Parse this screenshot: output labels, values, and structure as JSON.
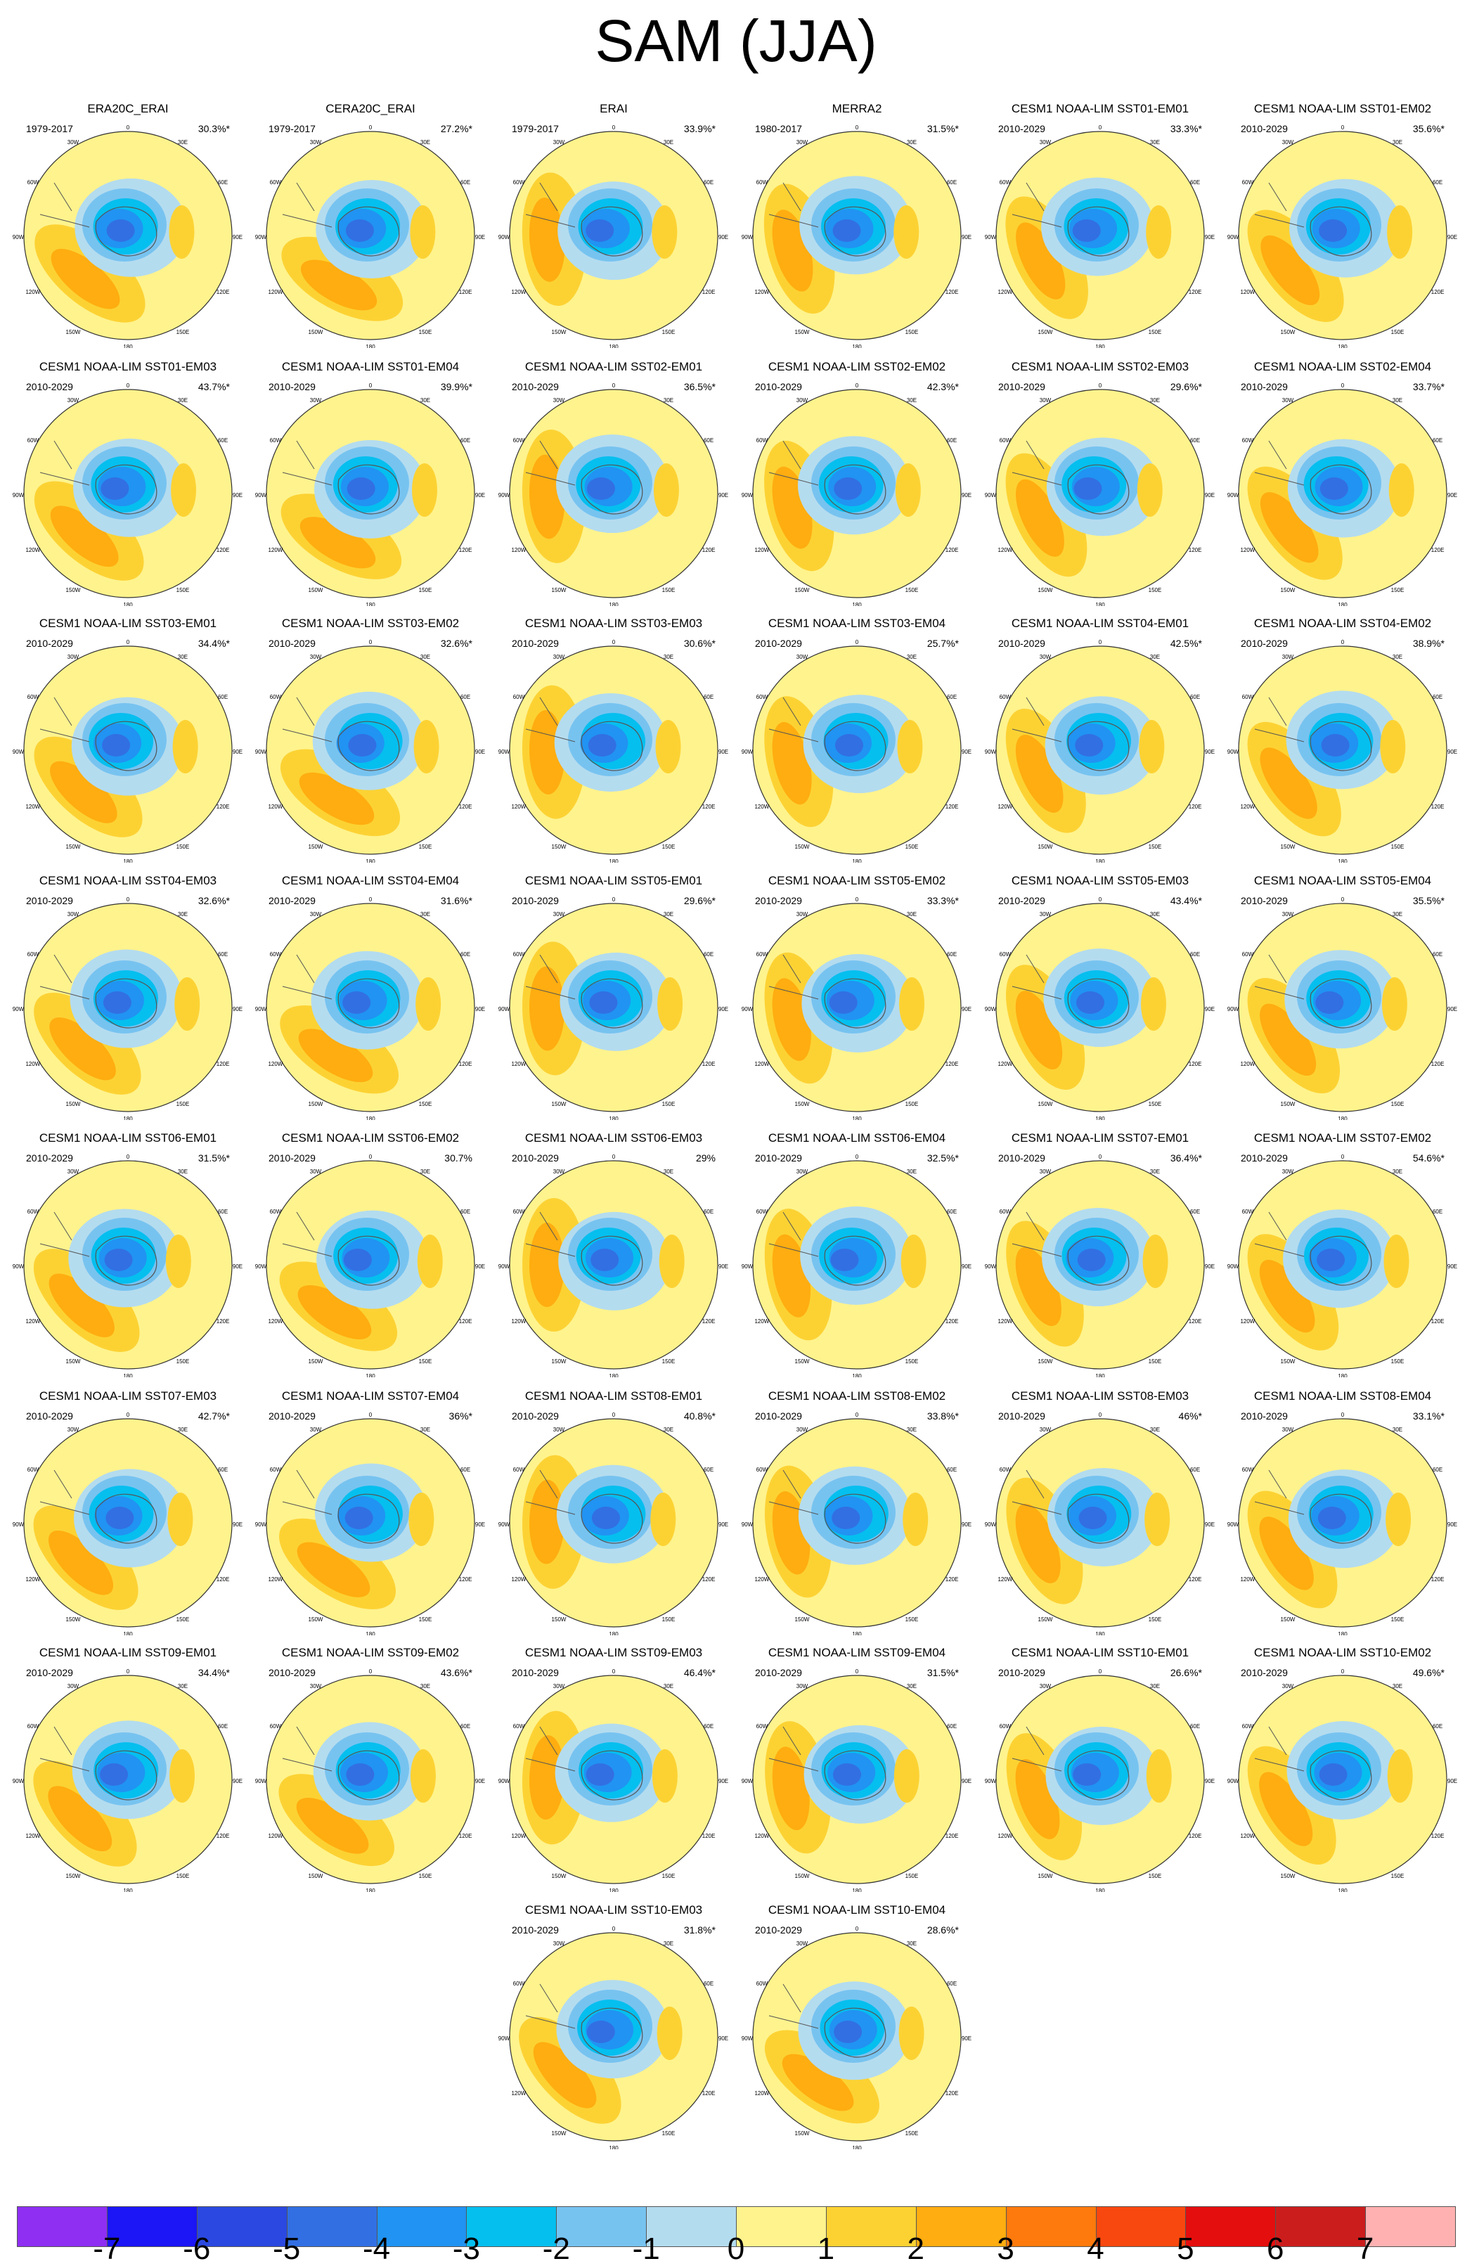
{
  "title": "SAM (JJA)",
  "lon_labels": [
    "0",
    "30E",
    "60E",
    "90E",
    "120E",
    "150E",
    "180",
    "150W",
    "120W",
    "90W",
    "60W",
    "30W"
  ],
  "colorbar": {
    "colors": [
      "#8f2ff2",
      "#1c15f5",
      "#2b49e0",
      "#326fe3",
      "#2193f2",
      "#05bfef",
      "#77c3f0",
      "#b4dcef",
      "#fff38d",
      "#fcd233",
      "#ffad10",
      "#ff7a0c",
      "#f9480f",
      "#e50e0e",
      "#cc1d1d",
      "#ffb1b1"
    ],
    "labels": [
      "-7",
      "-6",
      "-5",
      "-4",
      "-3",
      "-2",
      "-1",
      "0",
      "1",
      "2",
      "3",
      "4",
      "5",
      "6",
      "7"
    ]
  },
  "panels": [
    {
      "title": "ERA20C_ERAI",
      "period": "1979-2017",
      "pct": "30.3%*"
    },
    {
      "title": "CERA20C_ERAI",
      "period": "1979-2017",
      "pct": "27.2%*"
    },
    {
      "title": "ERAI",
      "period": "1979-2017",
      "pct": "33.9%*"
    },
    {
      "title": "MERRA2",
      "period": "1980-2017",
      "pct": "31.5%*"
    },
    {
      "title": "CESM1 NOAA-LIM SST01-EM01",
      "period": "2010-2029",
      "pct": "33.3%*"
    },
    {
      "title": "CESM1 NOAA-LIM SST01-EM02",
      "period": "2010-2029",
      "pct": "35.6%*"
    },
    {
      "title": "CESM1 NOAA-LIM SST01-EM03",
      "period": "2010-2029",
      "pct": "43.7%*"
    },
    {
      "title": "CESM1 NOAA-LIM SST01-EM04",
      "period": "2010-2029",
      "pct": "39.9%*"
    },
    {
      "title": "CESM1 NOAA-LIM SST02-EM01",
      "period": "2010-2029",
      "pct": "36.5%*"
    },
    {
      "title": "CESM1 NOAA-LIM SST02-EM02",
      "period": "2010-2029",
      "pct": "42.3%*"
    },
    {
      "title": "CESM1 NOAA-LIM SST02-EM03",
      "period": "2010-2029",
      "pct": "29.6%*"
    },
    {
      "title": "CESM1 NOAA-LIM SST02-EM04",
      "period": "2010-2029",
      "pct": "33.7%*"
    },
    {
      "title": "CESM1 NOAA-LIM SST03-EM01",
      "period": "2010-2029",
      "pct": "34.4%*"
    },
    {
      "title": "CESM1 NOAA-LIM SST03-EM02",
      "period": "2010-2029",
      "pct": "32.6%*"
    },
    {
      "title": "CESM1 NOAA-LIM SST03-EM03",
      "period": "2010-2029",
      "pct": "30.6%*"
    },
    {
      "title": "CESM1 NOAA-LIM SST03-EM04",
      "period": "2010-2029",
      "pct": "25.7%*"
    },
    {
      "title": "CESM1 NOAA-LIM SST04-EM01",
      "period": "2010-2029",
      "pct": "42.5%*"
    },
    {
      "title": "CESM1 NOAA-LIM SST04-EM02",
      "period": "2010-2029",
      "pct": "38.9%*"
    },
    {
      "title": "CESM1 NOAA-LIM SST04-EM03",
      "period": "2010-2029",
      "pct": "32.6%*"
    },
    {
      "title": "CESM1 NOAA-LIM SST04-EM04",
      "period": "2010-2029",
      "pct": "31.6%*"
    },
    {
      "title": "CESM1 NOAA-LIM SST05-EM01",
      "period": "2010-2029",
      "pct": "29.6%*"
    },
    {
      "title": "CESM1 NOAA-LIM SST05-EM02",
      "period": "2010-2029",
      "pct": "33.3%*"
    },
    {
      "title": "CESM1 NOAA-LIM SST05-EM03",
      "period": "2010-2029",
      "pct": "43.4%*"
    },
    {
      "title": "CESM1 NOAA-LIM SST05-EM04",
      "period": "2010-2029",
      "pct": "35.5%*"
    },
    {
      "title": "CESM1 NOAA-LIM SST06-EM01",
      "period": "2010-2029",
      "pct": "31.5%*"
    },
    {
      "title": "CESM1 NOAA-LIM SST06-EM02",
      "period": "2010-2029",
      "pct": "30.7%"
    },
    {
      "title": "CESM1 NOAA-LIM SST06-EM03",
      "period": "2010-2029",
      "pct": "29%"
    },
    {
      "title": "CESM1 NOAA-LIM SST06-EM04",
      "period": "2010-2029",
      "pct": "32.5%*"
    },
    {
      "title": "CESM1 NOAA-LIM SST07-EM01",
      "period": "2010-2029",
      "pct": "36.4%*"
    },
    {
      "title": "CESM1 NOAA-LIM SST07-EM02",
      "period": "2010-2029",
      "pct": "54.6%*"
    },
    {
      "title": "CESM1 NOAA-LIM SST07-EM03",
      "period": "2010-2029",
      "pct": "42.7%*"
    },
    {
      "title": "CESM1 NOAA-LIM SST07-EM04",
      "period": "2010-2029",
      "pct": "36%*"
    },
    {
      "title": "CESM1 NOAA-LIM SST08-EM01",
      "period": "2010-2029",
      "pct": "40.8%*"
    },
    {
      "title": "CESM1 NOAA-LIM SST08-EM02",
      "period": "2010-2029",
      "pct": "33.8%*"
    },
    {
      "title": "CESM1 NOAA-LIM SST08-EM03",
      "period": "2010-2029",
      "pct": "46%*"
    },
    {
      "title": "CESM1 NOAA-LIM SST08-EM04",
      "period": "2010-2029",
      "pct": "33.1%*"
    },
    {
      "title": "CESM1 NOAA-LIM SST09-EM01",
      "period": "2010-2029",
      "pct": "34.4%*"
    },
    {
      "title": "CESM1 NOAA-LIM SST09-EM02",
      "period": "2010-2029",
      "pct": "43.6%*"
    },
    {
      "title": "CESM1 NOAA-LIM SST09-EM03",
      "period": "2010-2029",
      "pct": "46.4%*"
    },
    {
      "title": "CESM1 NOAA-LIM SST09-EM04",
      "period": "2010-2029",
      "pct": "31.5%*"
    },
    {
      "title": "CESM1 NOAA-LIM SST10-EM01",
      "period": "2010-2029",
      "pct": "26.6%*"
    },
    {
      "title": "CESM1 NOAA-LIM SST10-EM02",
      "period": "2010-2029",
      "pct": "49.6%*"
    },
    {
      "title": "CESM1 NOAA-LIM SST10-EM03",
      "period": "2010-2029",
      "pct": "31.8%*"
    },
    {
      "title": "CESM1 NOAA-LIM SST10-EM04",
      "period": "2010-2029",
      "pct": "28.6%*"
    }
  ]
}
